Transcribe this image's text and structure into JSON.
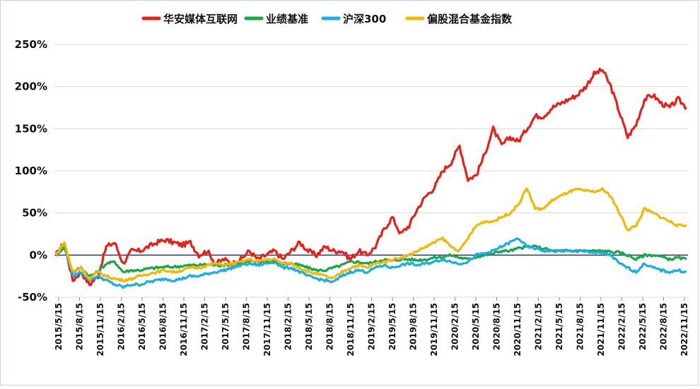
{
  "chart_data": {
    "type": "line",
    "title": "",
    "xlabel": "",
    "ylabel": "",
    "ylim": [
      -50,
      250
    ],
    "y_ticks": [
      "250%",
      "200%",
      "150%",
      "100%",
      "50%",
      "0%",
      "-50%"
    ],
    "y_tick_values": [
      250,
      200,
      150,
      100,
      50,
      0,
      -50
    ],
    "x_ticks": [
      "2015/5/15",
      "2015/8/15",
      "2015/11/15",
      "2016/2/15",
      "2016/5/15",
      "2016/8/15",
      "2016/11/15",
      "2017/2/15",
      "2017/5/15",
      "2017/8/15",
      "2017/11/15",
      "2018/2/15",
      "2018/5/15",
      "2018/8/15",
      "2018/11/15",
      "2019/2/15",
      "2019/5/15",
      "2019/8/15",
      "2019/11/15",
      "2020/2/15",
      "2020/5/15",
      "2020/8/15",
      "2020/11/15",
      "2021/2/15",
      "2021/5/15",
      "2021/8/15",
      "2021/11/15",
      "2022/2/15",
      "2022/5/15",
      "2022/8/15",
      "2022/11/15"
    ],
    "grid": true,
    "legend_position": "top-center",
    "series": [
      {
        "name": "华安媒体互联网",
        "color": "#e8201a",
        "values": [
          0,
          15,
          -30,
          -20,
          -35,
          -25,
          10,
          15,
          -10,
          5,
          5,
          10,
          15,
          18,
          15,
          12,
          15,
          0,
          5,
          -10,
          -5,
          -10,
          -5,
          5,
          -5,
          0,
          5,
          -5,
          5,
          15,
          5,
          0,
          10,
          5,
          5,
          -5,
          5,
          0,
          10,
          30,
          45,
          25,
          35,
          55,
          70,
          80,
          100,
          110,
          130,
          90,
          95,
          120,
          150,
          130,
          140,
          135,
          150,
          165,
          165,
          175,
          180,
          185,
          190,
          200,
          215,
          220,
          200,
          170,
          140,
          155,
          185,
          190,
          180,
          175,
          185,
          175
        ]
      },
      {
        "name": "业绩基准",
        "color": "#1aa64a",
        "values": [
          0,
          10,
          -20,
          -15,
          -25,
          -20,
          -10,
          -8,
          -20,
          -18,
          -18,
          -16,
          -15,
          -14,
          -14,
          -13,
          -12,
          -12,
          -11,
          -12,
          -12,
          -10,
          -10,
          -8,
          -8,
          -8,
          -7,
          -10,
          -10,
          -12,
          -15,
          -18,
          -18,
          -15,
          -12,
          -8,
          -8,
          -10,
          -8,
          -5,
          -7,
          -5,
          -5,
          -6,
          -5,
          -3,
          -2,
          0,
          -3,
          -5,
          -2,
          0,
          2,
          5,
          5,
          8,
          10,
          10,
          8,
          5,
          5,
          5,
          5,
          5,
          5,
          5,
          4,
          3,
          0,
          -5,
          0,
          0,
          -2,
          -5,
          -3,
          -5
        ]
      },
      {
        "name": "沪深300",
        "color": "#1aaee8",
        "values": [
          0,
          15,
          -25,
          -20,
          -30,
          -25,
          -30,
          -35,
          -38,
          -35,
          -35,
          -32,
          -30,
          -28,
          -30,
          -28,
          -25,
          -25,
          -22,
          -20,
          -18,
          -15,
          -12,
          -10,
          -12,
          -10,
          -8,
          -15,
          -15,
          -20,
          -25,
          -28,
          -30,
          -32,
          -25,
          -20,
          -18,
          -20,
          -15,
          -12,
          -15,
          -12,
          -10,
          -12,
          -10,
          -8,
          -5,
          -8,
          -10,
          -8,
          0,
          2,
          5,
          10,
          15,
          20,
          10,
          8,
          5,
          5,
          5,
          5,
          5,
          5,
          3,
          2,
          0,
          -10,
          -15,
          -20,
          -10,
          -15,
          -18,
          -20,
          -18,
          -20
        ]
      },
      {
        "name": "偏股混合基金指数",
        "color": "#f5b800",
        "values": [
          0,
          15,
          -20,
          -15,
          -28,
          -20,
          -25,
          -28,
          -30,
          -28,
          -25,
          -22,
          -20,
          -18,
          -20,
          -18,
          -15,
          -15,
          -12,
          -10,
          -12,
          -10,
          -8,
          -5,
          -8,
          -5,
          -5,
          -10,
          -10,
          -15,
          -20,
          -22,
          -25,
          -28,
          -20,
          -15,
          -12,
          -15,
          -10,
          -8,
          -5,
          -3,
          0,
          5,
          10,
          15,
          20,
          10,
          5,
          20,
          35,
          40,
          40,
          45,
          50,
          60,
          80,
          55,
          55,
          65,
          70,
          75,
          78,
          76,
          75,
          78,
          70,
          50,
          30,
          35,
          55,
          50,
          45,
          40,
          35,
          35
        ]
      }
    ]
  }
}
